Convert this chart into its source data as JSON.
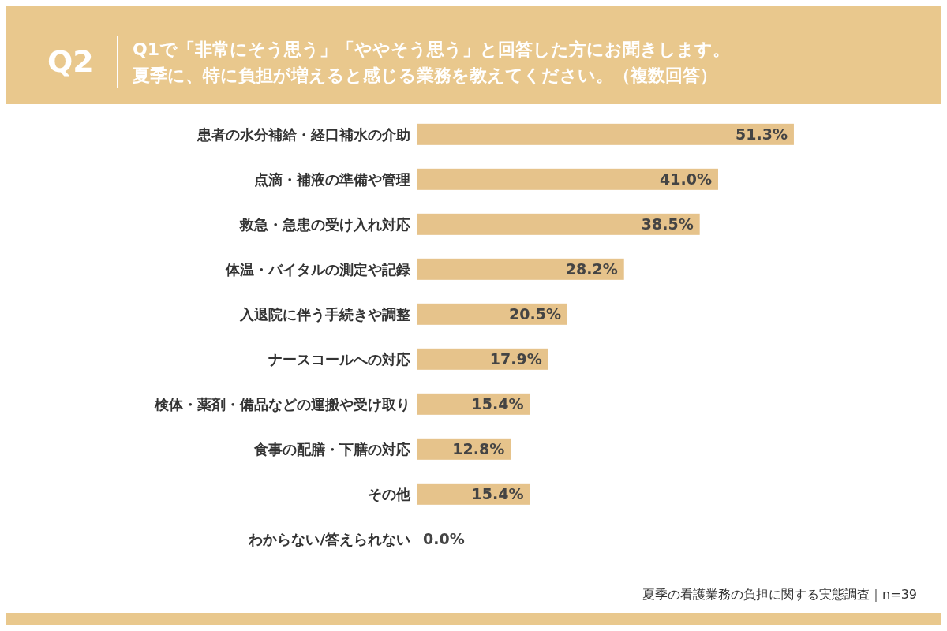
{
  "chart_data": {
    "type": "bar",
    "orientation": "horizontal",
    "title": "Q1で「非常にそう思う」「ややそう思う」と回答した方にお聞きします。",
    "subtitle": "夏季に、特に負担が増えると感じる業務を教えてください。（複数回答）",
    "categories": [
      "患者の水分補給・経口補水の介助",
      "点滴・補液の準備や管理",
      "救急・急患の受け入れ対応",
      "体温・バイタルの測定や記録",
      "入退院に伴う手続きや調整",
      "ナースコールへの対応",
      "検体・薬剤・備品などの運搬や受け取り",
      "食事の配膳・下膳の対応",
      "その他",
      "わからない/答えられない"
    ],
    "values": [
      51.3,
      41.0,
      38.5,
      28.2,
      20.5,
      17.9,
      15.4,
      12.8,
      15.4,
      0.0
    ],
    "value_labels": [
      "51.3%",
      "41.0%",
      "38.5%",
      "28.2%",
      "20.5%",
      "17.9%",
      "15.4%",
      "12.8%",
      "15.4%",
      "0.0%"
    ],
    "color": "#e6c38b",
    "legend": false,
    "annotations": [
      "Q2",
      "夏季の看護業務の負担に関する実態調査｜n=39"
    ]
  }
}
